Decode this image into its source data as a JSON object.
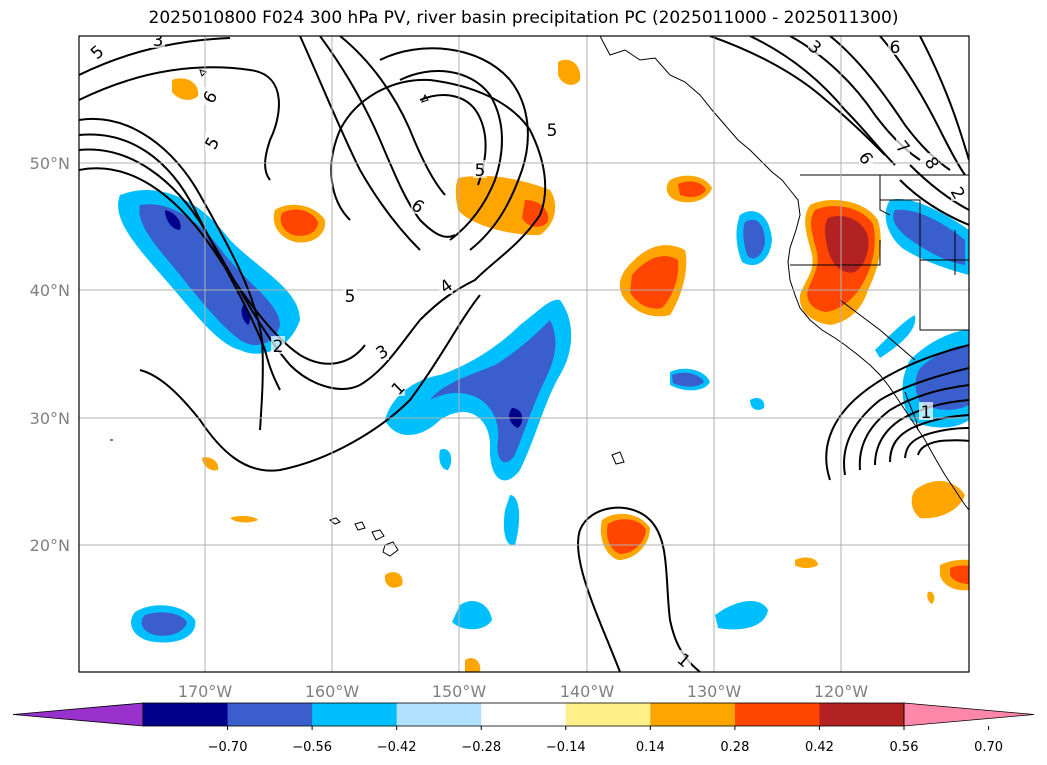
{
  "title": "2025010800 F024 300 hPa PV, river basin precipitation PC (2025011000 - 2025011300)",
  "map": {
    "lon_labels": [
      "170°W",
      "160°W",
      "150°W",
      "140°W",
      "130°W",
      "120°W"
    ],
    "lat_labels": [
      "50°N",
      "40°N",
      "30°N",
      "20°N"
    ],
    "gridlines": true,
    "projection_extent": {
      "lon_min": -180,
      "lon_max": -110,
      "lat_min": 10,
      "lat_max": 60
    }
  },
  "colorbar": {
    "tick_labels": [
      "−0.70",
      "−0.56",
      "−0.42",
      "−0.28",
      "−0.14",
      "0.14",
      "0.28",
      "0.42",
      "0.56",
      "0.70"
    ],
    "colors": [
      "#9932cc",
      "#00008b",
      "#3a5fcd",
      "#00bfff",
      "#b0e2ff",
      "#ffffff",
      "#fff08a",
      "#ffa500",
      "#ff4500",
      "#b22222",
      "#ff88aa"
    ],
    "extend": "both"
  },
  "contour_labels": [
    "5",
    "3",
    "6",
    "5",
    "5",
    "6",
    "5",
    "4",
    "3",
    "1",
    "2",
    "5",
    "3",
    "6",
    "7",
    "8",
    "2",
    "6",
    "1",
    "1"
  ],
  "colors": {
    "contour": "#000000",
    "grid": "#b0b0b0",
    "coast": "#000000",
    "tick": "#808080"
  }
}
